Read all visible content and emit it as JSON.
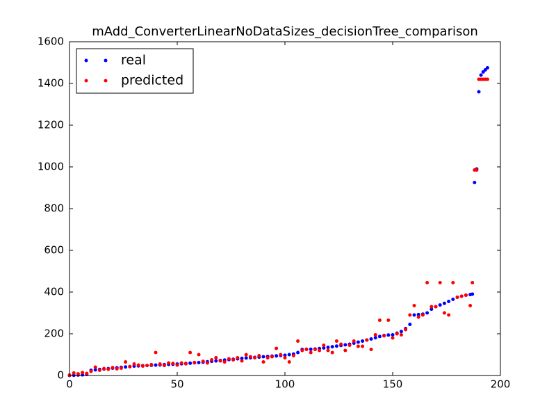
{
  "chart_data": {
    "type": "scatter",
    "title": "mAdd_ConverterLinearNoDataSizes_decisionTree_comparison",
    "x": [
      0,
      2,
      4,
      6,
      8,
      10,
      12,
      14,
      16,
      18,
      20,
      22,
      24,
      26,
      28,
      30,
      32,
      34,
      36,
      38,
      40,
      42,
      44,
      46,
      48,
      50,
      52,
      54,
      56,
      58,
      60,
      62,
      64,
      66,
      68,
      70,
      72,
      74,
      76,
      78,
      80,
      82,
      84,
      86,
      88,
      90,
      92,
      94,
      96,
      98,
      100,
      102,
      104,
      106,
      108,
      110,
      112,
      114,
      116,
      118,
      120,
      122,
      124,
      126,
      128,
      130,
      132,
      134,
      136,
      138,
      140,
      142,
      144,
      146,
      148,
      150,
      152,
      154,
      156,
      158,
      160,
      162,
      164,
      166,
      168,
      170,
      172,
      174,
      176,
      178,
      180,
      182,
      184,
      186,
      187,
      188,
      189,
      190,
      191,
      192,
      193,
      194
    ],
    "series": [
      {
        "name": "real",
        "color": "#0000ff",
        "values": [
          0,
          1,
          2,
          3,
          5,
          25,
          27,
          29,
          31,
          33,
          35,
          37,
          39,
          41,
          43,
          45,
          46,
          47,
          48,
          49,
          50,
          51,
          52,
          53,
          54,
          55,
          56,
          58,
          59,
          61,
          62,
          64,
          66,
          68,
          70,
          72,
          74,
          76,
          78,
          80,
          82,
          84,
          85,
          87,
          88,
          90,
          91,
          93,
          94,
          96,
          97,
          100,
          103,
          110,
          125,
          126,
          126,
          127,
          129,
          132,
          135,
          138,
          141,
          144,
          147,
          150,
          155,
          160,
          165,
          170,
          175,
          181,
          187,
          192,
          194,
          195,
          203,
          211,
          225,
          245,
          290,
          292,
          294,
          300,
          318,
          330,
          338,
          346,
          355,
          365,
          375,
          380,
          385,
          388,
          390,
          925,
          990,
          1360,
          1440,
          1455,
          1465,
          1475
        ]
      },
      {
        "name": "predicted",
        "color": "#ff0000",
        "values": [
          2,
          12,
          8,
          14,
          10,
          20,
          40,
          25,
          33,
          30,
          38,
          32,
          35,
          65,
          42,
          55,
          50,
          45,
          48,
          52,
          110,
          55,
          48,
          60,
          58,
          50,
          60,
          56,
          110,
          62,
          100,
          68,
          60,
          75,
          85,
          70,
          65,
          80,
          75,
          85,
          70,
          100,
          90,
          85,
          95,
          65,
          85,
          90,
          130,
          100,
          85,
          65,
          95,
          165,
          120,
          125,
          110,
          125,
          120,
          145,
          120,
          110,
          165,
          150,
          120,
          145,
          165,
          140,
          140,
          170,
          125,
          195,
          265,
          190,
          265,
          180,
          200,
          195,
          220,
          290,
          335,
          280,
          290,
          445,
          330,
          330,
          445,
          300,
          290,
          445,
          375,
          380,
          385,
          335,
          445,
          985,
          985,
          1420,
          1420,
          1420,
          1420,
          1420
        ]
      }
    ],
    "xlim": [
      0,
      200
    ],
    "xticks": [
      0,
      50,
      100,
      150,
      200
    ],
    "ylim": [
      0,
      1600
    ],
    "yticks": [
      0,
      200,
      400,
      600,
      800,
      1000,
      1200,
      1400,
      1600
    ],
    "grid": false,
    "legend": "upper left"
  }
}
